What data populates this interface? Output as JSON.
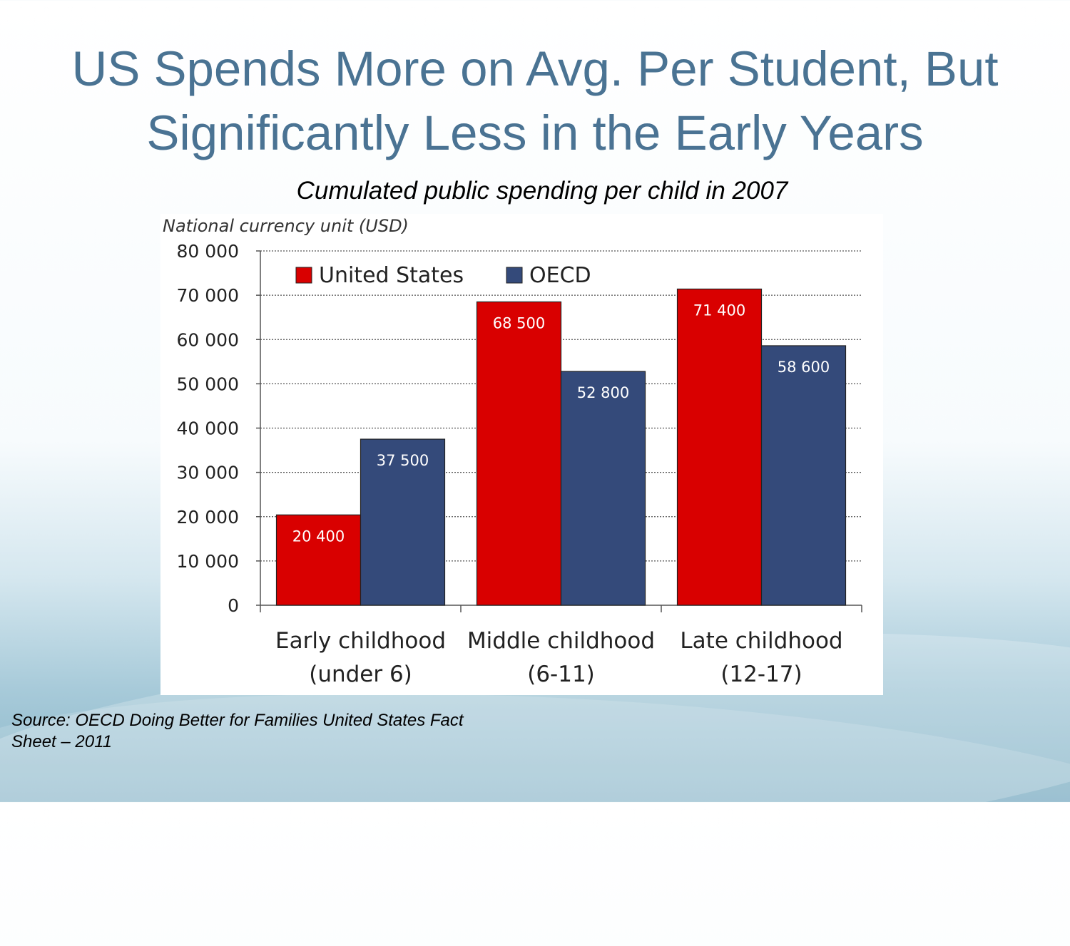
{
  "slide": {
    "title_line1": "US Spends More on Avg. Per Student, But",
    "title_line2": "Significantly Less in the Early Years",
    "source_line1": "Source: OECD Doing Better for Families United States Fact",
    "source_line2": "Sheet – 2011"
  },
  "colors": {
    "us": "#d90000",
    "oecd": "#344a7a",
    "title": "#4a7393"
  },
  "chart_data": {
    "type": "bar",
    "title": "Cumulated public spending per child in 2007",
    "ylabel": "National currency unit (USD)",
    "ylim": [
      0,
      80000
    ],
    "yticks": [
      "80 000",
      "70 000",
      "60 000",
      "50 000",
      "40 000",
      "30 000",
      "20 000",
      "10 000",
      "0"
    ],
    "ytick_values": [
      80000,
      70000,
      60000,
      50000,
      40000,
      30000,
      20000,
      10000,
      0
    ],
    "grid": "horizontal dotted",
    "legend_position": "top-left",
    "categories": [
      {
        "line1": "Early childhood",
        "line2": "(under 6)"
      },
      {
        "line1": "Middle childhood",
        "line2": "(6-11)"
      },
      {
        "line1": "Late childhood",
        "line2": "(12-17)"
      }
    ],
    "series": [
      {
        "name": "United States",
        "values": [
          20400,
          68500,
          71400
        ],
        "labels": [
          "20 400",
          "68 500",
          "71 400"
        ]
      },
      {
        "name": "OECD",
        "values": [
          37500,
          52800,
          58600
        ],
        "labels": [
          "37 500",
          "52 800",
          "58 600"
        ]
      }
    ]
  }
}
